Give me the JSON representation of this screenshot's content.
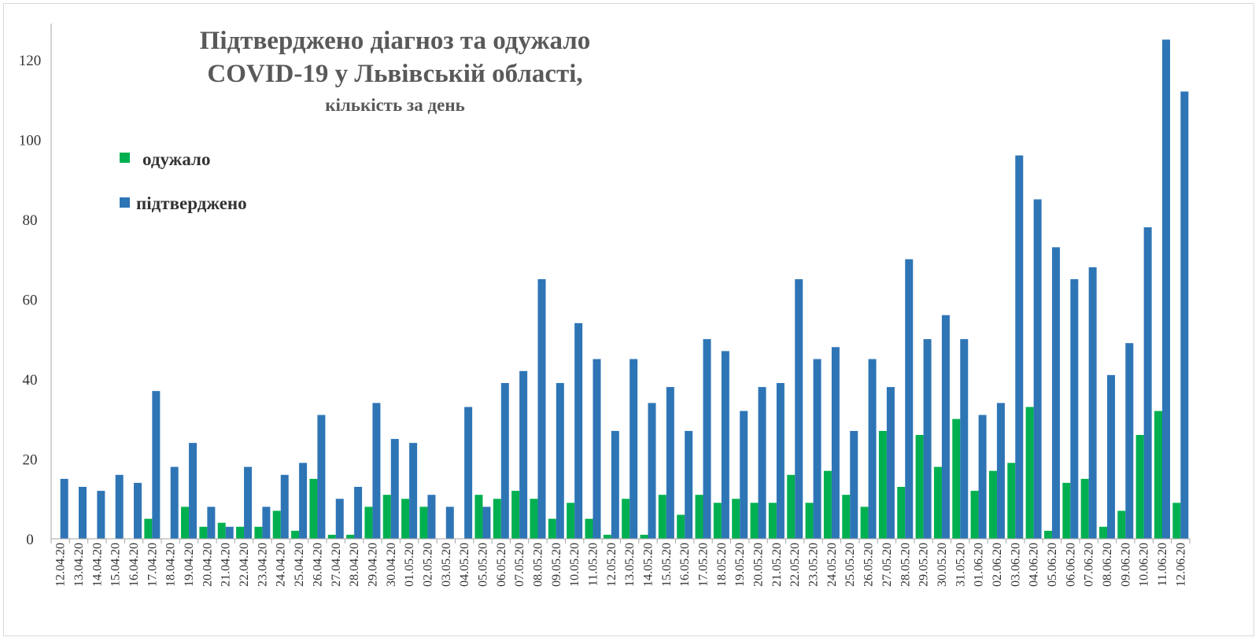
{
  "chart_data": {
    "type": "bar",
    "title_lines": [
      "Підтверджено діагноз та одужало",
      "COVID-19 у Львівській області,"
    ],
    "subtitle": "кількість за день",
    "xlabel": "",
    "ylabel": "",
    "ylim": [
      0,
      130
    ],
    "yticks": [
      0,
      20,
      40,
      60,
      80,
      100,
      120
    ],
    "grid": false,
    "legend_position": "top-left",
    "categories": [
      "12.04.20",
      "13.04.20",
      "14.04.20",
      "15.04.20",
      "16.04.20",
      "17.04.20",
      "18.04.20",
      "19.04.20",
      "20.04.20",
      "21.04.20",
      "22.04.20",
      "23.04.20",
      "24.04.20",
      "25.04.20",
      "26.04.20",
      "27.04.20",
      "28.04.20",
      "29.04.20",
      "30.04.20",
      "01.05.20",
      "02.05.20",
      "03.05.20",
      "04.05.20",
      "05.05.20",
      "06.05.20",
      "07.05.20",
      "08.05.20",
      "09.05.20",
      "10.05.20",
      "11.05.20",
      "12.05.20",
      "13.05.20",
      "14.05.20",
      "15.05.20",
      "16.05.20",
      "17.05.20",
      "18.05.20",
      "19.05.20",
      "20.05.20",
      "21.05.20",
      "22.05.20",
      "23.05.20",
      "24.05.20",
      "25.05.20",
      "26.05.20",
      "27.05.20",
      "28.05.20",
      "29.05.20",
      "30.05.20",
      "31.05.20",
      "01.06.20",
      "02.06.20",
      "03.06.20",
      "04.06.20",
      "05.06.20",
      "06.06.20",
      "07.06.20",
      "08.06.20",
      "09.06.20",
      "10.06.20",
      "11.06.20",
      "12.06.20"
    ],
    "series": [
      {
        "name": "одужало",
        "color": "#00b050",
        "values": [
          0,
          0,
          0,
          0,
          0,
          5,
          0,
          8,
          3,
          4,
          3,
          3,
          7,
          2,
          15,
          1,
          1,
          8,
          11,
          10,
          8,
          0,
          0,
          11,
          10,
          12,
          10,
          5,
          9,
          5,
          1,
          10,
          1,
          11,
          6,
          11,
          9,
          10,
          9,
          9,
          16,
          9,
          17,
          11,
          8,
          27,
          13,
          26,
          18,
          30,
          12,
          17,
          19,
          33,
          2,
          14,
          15,
          3,
          7,
          26,
          32,
          9
        ]
      },
      {
        "name": "підтверджено",
        "color": "#2e75b6",
        "values": [
          15,
          13,
          12,
          16,
          14,
          37,
          18,
          24,
          8,
          3,
          18,
          8,
          16,
          19,
          31,
          10,
          13,
          34,
          25,
          24,
          11,
          8,
          33,
          8,
          39,
          42,
          65,
          39,
          54,
          45,
          27,
          45,
          34,
          38,
          27,
          50,
          47,
          32,
          38,
          39,
          65,
          45,
          48,
          27,
          45,
          38,
          70,
          50,
          56,
          50,
          31,
          34,
          96,
          85,
          73,
          65,
          68,
          41,
          49,
          78,
          125,
          112
        ]
      }
    ]
  }
}
